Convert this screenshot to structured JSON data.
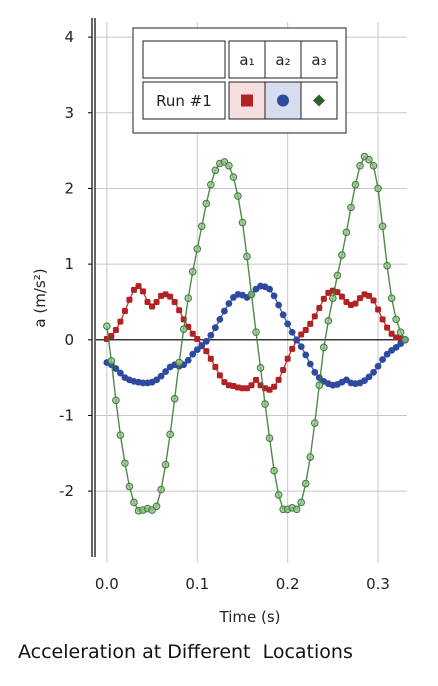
{
  "caption": "Acceleration at Different  Locations",
  "chart_data": {
    "type": "scatter",
    "xlabel": "Time (s)",
    "ylabel": "a (m/s²)",
    "xlim": [
      -0.012,
      0.332
    ],
    "ylim": [
      -2.95,
      4.2
    ],
    "x_ticks": [
      0.0,
      0.1,
      0.2,
      0.3
    ],
    "x_tick_labels": [
      "0.0",
      "0.1",
      "0.2",
      "0.3"
    ],
    "y_ticks": [
      -2,
      -1,
      0,
      1,
      2,
      3,
      4
    ],
    "y_tick_labels": [
      "-2",
      "-1",
      "0",
      "1",
      "2",
      "3",
      "4"
    ],
    "grid": true,
    "legend": {
      "placement": "top-right",
      "row_label": "Run #1",
      "columns": [
        "a₁",
        "a₂",
        "a₃"
      ]
    },
    "series": [
      {
        "name": "a₁",
        "color": "#b22222",
        "marker": "square",
        "x": [
          0.0,
          0.005,
          0.01,
          0.015,
          0.02,
          0.025,
          0.03,
          0.035,
          0.04,
          0.045,
          0.05,
          0.055,
          0.06,
          0.065,
          0.07,
          0.075,
          0.08,
          0.085,
          0.09,
          0.095,
          0.1,
          0.105,
          0.11,
          0.115,
          0.12,
          0.125,
          0.13,
          0.135,
          0.14,
          0.145,
          0.15,
          0.155,
          0.16,
          0.165,
          0.17,
          0.175,
          0.18,
          0.185,
          0.19,
          0.195,
          0.2,
          0.205,
          0.21,
          0.215,
          0.22,
          0.225,
          0.23,
          0.235,
          0.24,
          0.245,
          0.25,
          0.255,
          0.26,
          0.265,
          0.27,
          0.275,
          0.28,
          0.285,
          0.29,
          0.295,
          0.3,
          0.305,
          0.31,
          0.315,
          0.32,
          0.325,
          0.33
        ],
        "y": [
          0.01,
          0.05,
          0.13,
          0.24,
          0.38,
          0.53,
          0.66,
          0.71,
          0.64,
          0.5,
          0.44,
          0.5,
          0.58,
          0.6,
          0.57,
          0.5,
          0.39,
          0.27,
          0.17,
          0.08,
          0.01,
          -0.07,
          -0.15,
          -0.25,
          -0.36,
          -0.47,
          -0.56,
          -0.6,
          -0.61,
          -0.63,
          -0.64,
          -0.64,
          -0.6,
          -0.53,
          -0.6,
          -0.64,
          -0.66,
          -0.62,
          -0.53,
          -0.4,
          -0.25,
          -0.12,
          -0.01,
          0.07,
          0.13,
          0.21,
          0.31,
          0.42,
          0.54,
          0.62,
          0.65,
          0.63,
          0.57,
          0.5,
          0.46,
          0.48,
          0.55,
          0.6,
          0.58,
          0.52,
          0.4,
          0.27,
          0.16,
          0.08,
          0.03,
          0.01,
          0.0
        ]
      },
      {
        "name": "a₂",
        "color": "#2e4aa0",
        "marker": "circle",
        "x": [
          0.0,
          0.005,
          0.01,
          0.015,
          0.02,
          0.025,
          0.03,
          0.035,
          0.04,
          0.045,
          0.05,
          0.055,
          0.06,
          0.065,
          0.07,
          0.075,
          0.08,
          0.085,
          0.09,
          0.095,
          0.1,
          0.105,
          0.11,
          0.115,
          0.12,
          0.125,
          0.13,
          0.135,
          0.14,
          0.145,
          0.15,
          0.155,
          0.16,
          0.165,
          0.17,
          0.175,
          0.18,
          0.185,
          0.19,
          0.195,
          0.2,
          0.205,
          0.21,
          0.215,
          0.22,
          0.225,
          0.23,
          0.235,
          0.24,
          0.245,
          0.25,
          0.255,
          0.26,
          0.265,
          0.27,
          0.275,
          0.28,
          0.285,
          0.29,
          0.295,
          0.3,
          0.305,
          0.31,
          0.315,
          0.32,
          0.325,
          0.33
        ],
        "y": [
          -0.3,
          -0.33,
          -0.38,
          -0.44,
          -0.5,
          -0.53,
          -0.55,
          -0.56,
          -0.57,
          -0.57,
          -0.56,
          -0.53,
          -0.48,
          -0.42,
          -0.36,
          -0.33,
          -0.35,
          -0.33,
          -0.27,
          -0.19,
          -0.13,
          -0.08,
          -0.02,
          0.06,
          0.16,
          0.27,
          0.38,
          0.48,
          0.56,
          0.6,
          0.59,
          0.56,
          0.6,
          0.67,
          0.71,
          0.7,
          0.67,
          0.58,
          0.46,
          0.33,
          0.21,
          0.1,
          0.0,
          -0.09,
          -0.2,
          -0.32,
          -0.43,
          -0.5,
          -0.55,
          -0.58,
          -0.6,
          -0.59,
          -0.56,
          -0.53,
          -0.57,
          -0.58,
          -0.57,
          -0.54,
          -0.49,
          -0.43,
          -0.35,
          -0.26,
          -0.19,
          -0.14,
          -0.1,
          -0.05,
          0.0
        ]
      },
      {
        "name": "a₃",
        "color": "#3f7a3a",
        "marker": "diamond",
        "x": [
          0.0,
          0.005,
          0.01,
          0.015,
          0.02,
          0.025,
          0.03,
          0.035,
          0.04,
          0.045,
          0.05,
          0.055,
          0.06,
          0.065,
          0.07,
          0.075,
          0.08,
          0.085,
          0.09,
          0.095,
          0.1,
          0.105,
          0.11,
          0.115,
          0.12,
          0.125,
          0.13,
          0.135,
          0.14,
          0.145,
          0.15,
          0.155,
          0.16,
          0.165,
          0.17,
          0.175,
          0.18,
          0.185,
          0.19,
          0.195,
          0.2,
          0.205,
          0.21,
          0.215,
          0.22,
          0.225,
          0.23,
          0.235,
          0.24,
          0.245,
          0.25,
          0.255,
          0.26,
          0.265,
          0.27,
          0.275,
          0.28,
          0.285,
          0.29,
          0.295,
          0.3,
          0.305,
          0.31,
          0.315,
          0.32,
          0.325,
          0.33
        ],
        "y": [
          0.18,
          -0.28,
          -0.8,
          -1.26,
          -1.63,
          -1.94,
          -2.15,
          -2.26,
          -2.25,
          -2.23,
          -2.25,
          -2.2,
          -1.98,
          -1.65,
          -1.25,
          -0.78,
          -0.3,
          0.14,
          0.55,
          0.9,
          1.2,
          1.5,
          1.8,
          2.05,
          2.24,
          2.33,
          2.35,
          2.3,
          2.15,
          1.9,
          1.55,
          1.1,
          0.6,
          0.1,
          -0.37,
          -0.85,
          -1.3,
          -1.73,
          -2.05,
          -2.24,
          -2.24,
          -2.22,
          -2.24,
          -2.15,
          -1.9,
          -1.55,
          -1.1,
          -0.6,
          -0.1,
          0.25,
          0.55,
          0.85,
          1.12,
          1.42,
          1.75,
          2.05,
          2.3,
          2.42,
          2.38,
          2.3,
          2.0,
          1.5,
          0.98,
          0.55,
          0.27,
          0.1,
          0.0
        ]
      }
    ]
  }
}
